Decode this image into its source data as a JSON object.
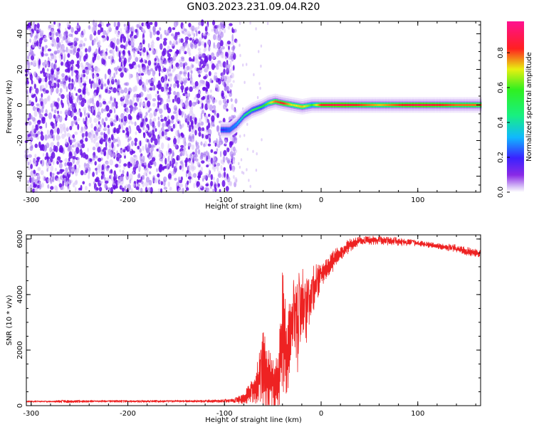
{
  "title": "GN03.2023.231.09.04.R20",
  "colors": {
    "snr_line": "#ee2222",
    "noise": "#6a10e8",
    "axis": "#000000",
    "colormap": [
      "#ffffff",
      "#6a10e8",
      "#2e22ff",
      "#10c8ff",
      "#18f060",
      "#e8f010",
      "#ff2020",
      "#ff20a0"
    ]
  },
  "chart_data": [
    {
      "type": "heatmap",
      "title": "GN03.2023.231.09.04.R20",
      "xlabel": "Height of straight line (km)",
      "ylabel": "Frequency (Hz)",
      "xlim": [
        -305,
        165
      ],
      "ylim": [
        -49,
        47
      ],
      "xticks": [
        -300,
        -200,
        -100,
        0,
        100
      ],
      "yticks": [
        -40,
        -20,
        0,
        20,
        40
      ],
      "colorbar": {
        "label": "Normalized spectral amplitude",
        "range": [
          0.0,
          0.98
        ],
        "ticks": [
          0.0,
          0.2,
          0.4,
          0.6,
          0.8
        ]
      },
      "noise_region_x": [
        -305,
        -88
      ],
      "signal_track": [
        {
          "x": -102,
          "y": -14
        },
        {
          "x": -95,
          "y": -14
        },
        {
          "x": -88,
          "y": -11
        },
        {
          "x": -80,
          "y": -6
        },
        {
          "x": -72,
          "y": -3
        },
        {
          "x": -62,
          "y": -1
        },
        {
          "x": -55,
          "y": 1
        },
        {
          "x": -48,
          "y": 2
        },
        {
          "x": -40,
          "y": 1
        },
        {
          "x": -30,
          "y": 0
        },
        {
          "x": -20,
          "y": -1
        },
        {
          "x": -10,
          "y": 0
        },
        {
          "x": 0,
          "y": 0
        },
        {
          "x": 20,
          "y": 0
        },
        {
          "x": 60,
          "y": 0
        },
        {
          "x": 100,
          "y": 0
        },
        {
          "x": 140,
          "y": 0
        },
        {
          "x": 165,
          "y": 0
        }
      ],
      "signal_amplitude": [
        {
          "x": -102,
          "a": 0.2
        },
        {
          "x": -95,
          "a": 0.25
        },
        {
          "x": -88,
          "a": 0.3
        },
        {
          "x": -80,
          "a": 0.45
        },
        {
          "x": -72,
          "a": 0.5
        },
        {
          "x": -62,
          "a": 0.55
        },
        {
          "x": -55,
          "a": 0.65
        },
        {
          "x": -48,
          "a": 0.8
        },
        {
          "x": -40,
          "a": 0.85
        },
        {
          "x": -30,
          "a": 0.7
        },
        {
          "x": -20,
          "a": 0.75
        },
        {
          "x": -10,
          "a": 0.6
        },
        {
          "x": 0,
          "a": 0.85
        },
        {
          "x": 20,
          "a": 0.9
        },
        {
          "x": 60,
          "a": 0.75
        },
        {
          "x": 100,
          "a": 0.9
        },
        {
          "x": 140,
          "a": 0.8
        },
        {
          "x": 165,
          "a": 0.8
        }
      ]
    },
    {
      "type": "line",
      "xlabel": "Height of straight line (km)",
      "ylabel": "SNR (10 * v/v)",
      "xlim": [
        -305,
        165
      ],
      "ylim": [
        0,
        6150
      ],
      "xticks": [
        -300,
        -200,
        -100,
        0,
        100
      ],
      "yticks": [
        0,
        2000,
        4000,
        6000
      ],
      "series": [
        {
          "x": [
            -305,
            -270,
            -230,
            -190,
            -150,
            -120,
            -100,
            -90,
            -80,
            -70,
            -60,
            -55,
            -50,
            -45,
            -40,
            -35,
            -30,
            -25,
            -20,
            -15,
            -10,
            -5,
            0,
            10,
            20,
            30,
            40,
            60,
            80,
            100,
            120,
            140,
            165
          ],
          "y": [
            150,
            150,
            160,
            155,
            160,
            160,
            170,
            180,
            250,
            600,
            1300,
            1000,
            900,
            700,
            2500,
            1800,
            3200,
            2700,
            3600,
            3400,
            4200,
            4300,
            4700,
            5100,
            5500,
            5800,
            5950,
            5950,
            5900,
            5850,
            5750,
            5650,
            5450
          ],
          "peak_envelope": [
            150,
            200,
            200,
            200,
            200,
            210,
            230,
            260,
            450,
            1100,
            2700,
            2200,
            1900,
            1800,
            4900,
            3400,
            4300,
            4500,
            5000,
            4600,
            5000,
            5100,
            5100,
            5500,
            5800,
            6050,
            6100,
            6100,
            6050,
            5950,
            5850,
            5800,
            5600
          ]
        }
      ]
    }
  ]
}
